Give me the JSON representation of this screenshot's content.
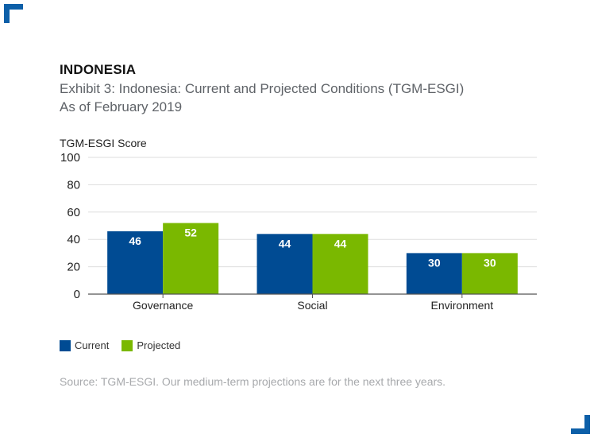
{
  "header": {
    "region": "INDONESIA",
    "title": "Exhibit 3: Indonesia: Current and Projected Conditions (TGM-ESGI) As of February 2019"
  },
  "colors": {
    "current": "#004b93",
    "projected": "#7ab800",
    "corner": "#0d5fa8"
  },
  "chart_data": {
    "type": "bar",
    "title": "Exhibit 3: Indonesia: Current and Projected Conditions (TGM-ESGI) As of February 2019",
    "xlabel": "",
    "ylabel": "TGM-ESGI Score",
    "ylim": [
      0,
      100
    ],
    "yticks": [
      0,
      20,
      40,
      60,
      80,
      100
    ],
    "categories": [
      "Governance",
      "Social",
      "Environment"
    ],
    "series": [
      {
        "name": "Current",
        "values": [
          46,
          44,
          30
        ]
      },
      {
        "name": "Projected",
        "values": [
          52,
          44,
          30
        ]
      }
    ],
    "grid": true,
    "legend": "bottom-left"
  },
  "source": "Source: TGM-ESGI. Our medium-term projections are for the next three years."
}
